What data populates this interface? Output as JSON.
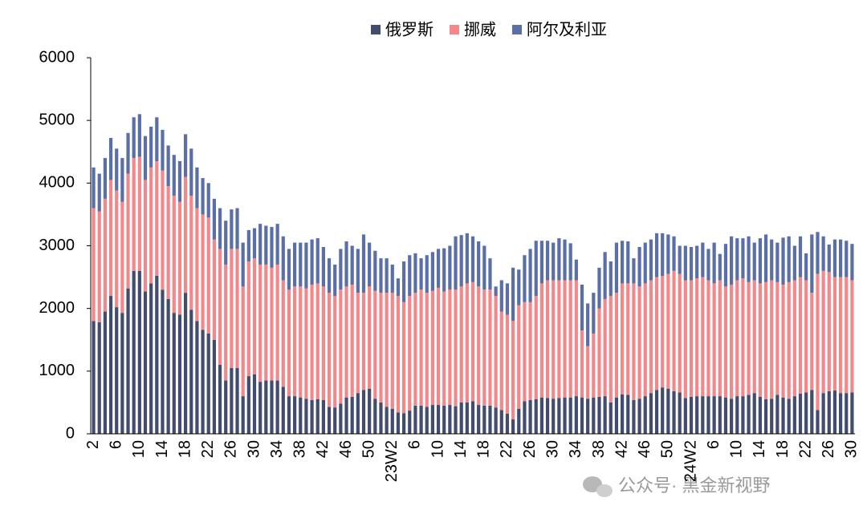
{
  "chart_data": {
    "type": "stacked_bar",
    "categories": [
      "2",
      null,
      null,
      null,
      "6",
      null,
      null,
      null,
      "10",
      null,
      null,
      null,
      "14",
      null,
      null,
      null,
      "18",
      null,
      null,
      null,
      "22",
      null,
      null,
      null,
      "26",
      null,
      null,
      null,
      "30",
      null,
      null,
      null,
      "34",
      null,
      null,
      null,
      "38",
      null,
      null,
      null,
      "42",
      null,
      null,
      null,
      "46",
      null,
      null,
      null,
      "50",
      null,
      null,
      null,
      "23W2",
      null,
      null,
      null,
      "6",
      null,
      null,
      null,
      "10",
      null,
      null,
      null,
      "14",
      null,
      null,
      null,
      "18",
      null,
      null,
      null,
      "22",
      null,
      null,
      null,
      "26",
      null,
      null,
      null,
      "30",
      null,
      null,
      null,
      "34",
      null,
      null,
      null,
      "38",
      null,
      null,
      null,
      "42",
      null,
      null,
      null,
      "46",
      null,
      null,
      null,
      "50",
      null,
      null,
      null,
      "24W2",
      null,
      null,
      null,
      "6",
      null,
      null,
      null,
      "10",
      null,
      null,
      null,
      "14",
      null,
      null,
      null,
      "18",
      null,
      null,
      null,
      "22",
      null,
      null,
      null,
      "26",
      null,
      null,
      null,
      "30"
    ],
    "series": [
      {
        "name": "俄罗斯",
        "color": "#414c6e",
        "values": [
          1800,
          1780,
          1950,
          2200,
          2020,
          1930,
          2320,
          2600,
          2600,
          2270,
          2400,
          2520,
          2300,
          2150,
          1930,
          1900,
          2250,
          1980,
          1800,
          1660,
          1600,
          1500,
          1100,
          850,
          1050,
          1050,
          600,
          920,
          950,
          830,
          850,
          850,
          850,
          750,
          600,
          600,
          580,
          560,
          540,
          550,
          540,
          430,
          420,
          480,
          580,
          590,
          650,
          700,
          720,
          560,
          500,
          430,
          400,
          340,
          330,
          370,
          450,
          450,
          430,
          460,
          460,
          450,
          460,
          440,
          500,
          500,
          520,
          460,
          450,
          450,
          420,
          380,
          320,
          230,
          400,
          520,
          540,
          550,
          580,
          570,
          560,
          570,
          580,
          580,
          600,
          580,
          560,
          580,
          590,
          600,
          500,
          580,
          630,
          620,
          540,
          560,
          600,
          650,
          700,
          740,
          720,
          680,
          660,
          570,
          590,
          600,
          600,
          600,
          600,
          600,
          580,
          560,
          600,
          600,
          620,
          650,
          590,
          550,
          560,
          620,
          580,
          560,
          600,
          640,
          660,
          700,
          380,
          650,
          680,
          690,
          650,
          650,
          660
        ]
      },
      {
        "name": "挪威",
        "color": "#f4878a",
        "values": [
          1800,
          1770,
          1800,
          1850,
          1860,
          1770,
          1830,
          1800,
          1820,
          1780,
          1850,
          1830,
          1900,
          1800,
          1870,
          1800,
          1850,
          1820,
          1800,
          1840,
          1850,
          1600,
          1850,
          1850,
          1900,
          1900,
          1750,
          1830,
          1850,
          1870,
          1850,
          1800,
          1850,
          1700,
          1700,
          1750,
          1770,
          1760,
          1840,
          1850,
          1810,
          1820,
          1780,
          1820,
          1770,
          1790,
          1600,
          1550,
          1630,
          1720,
          1750,
          1820,
          1850,
          1860,
          1770,
          1830,
          1800,
          1850,
          1820,
          1820,
          1870,
          1820,
          1840,
          1860,
          1850,
          1900,
          1900,
          1890,
          1850,
          1850,
          1780,
          1570,
          1580,
          1570,
          1650,
          1580,
          1560,
          1650,
          1820,
          1880,
          1890,
          1880,
          1870,
          1870,
          1850,
          1070,
          840,
          1020,
          1410,
          1550,
          1700,
          1670,
          1770,
          1780,
          1860,
          1790,
          1800,
          1800,
          1800,
          1780,
          1830,
          1920,
          1890,
          1880,
          1860,
          1880,
          1900,
          1850,
          1800,
          1850,
          1770,
          1820,
          1850,
          1880,
          1800,
          1800,
          1810,
          1870,
          1890,
          1800,
          1800,
          1860,
          1850,
          1860,
          1790,
          1550,
          2170,
          1950,
          1900,
          1810,
          1850,
          1850,
          1790
        ]
      },
      {
        "name": "阿尔及利亚",
        "color": "#5a6ea8",
        "values": [
          650,
          600,
          650,
          670,
          670,
          700,
          650,
          650,
          680,
          700,
          650,
          700,
          650,
          650,
          650,
          650,
          680,
          750,
          650,
          580,
          550,
          650,
          650,
          700,
          630,
          650,
          700,
          500,
          480,
          650,
          620,
          650,
          650,
          700,
          650,
          700,
          700,
          730,
          720,
          720,
          630,
          550,
          500,
          650,
          720,
          620,
          700,
          930,
          700,
          640,
          550,
          550,
          450,
          280,
          650,
          650,
          630,
          500,
          600,
          620,
          620,
          690,
          700,
          850,
          820,
          800,
          730,
          720,
          700,
          500,
          150,
          500,
          500,
          850,
          570,
          750,
          850,
          880,
          680,
          630,
          600,
          670,
          650,
          590,
          330,
          730,
          680,
          650,
          650,
          750,
          550,
          800,
          680,
          670,
          400,
          630,
          650,
          650,
          700,
          680,
          630,
          550,
          450,
          550,
          530,
          520,
          550,
          500,
          650,
          420,
          680,
          770,
          670,
          640,
          730,
          600,
          720,
          760,
          650,
          630,
          750,
          730,
          550,
          650,
          430,
          930,
          670,
          550,
          440,
          600,
          600,
          580,
          580
        ]
      }
    ],
    "ylim": [
      0,
      6000
    ],
    "yticks": [
      0,
      1000,
      2000,
      3000,
      4000,
      5000,
      6000
    ],
    "grid": false,
    "legend": "top",
    "watermark": "公众号· 黑金新视野"
  }
}
